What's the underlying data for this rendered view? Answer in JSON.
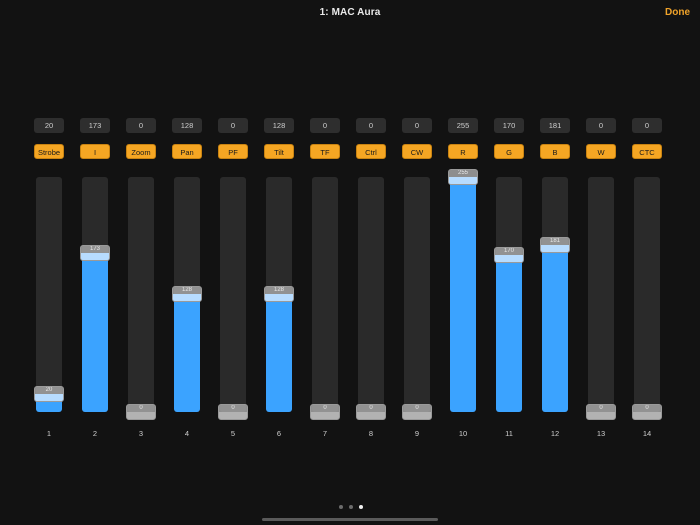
{
  "header": {
    "title": "1: MAC Aura",
    "done_label": "Done"
  },
  "colors": {
    "accent": "#f5a623",
    "fill": "#3ba3ff",
    "background": "#121212",
    "track": "#2a2a2a"
  },
  "channels": [
    {
      "number": "1",
      "label": "Strobe",
      "value": "20"
    },
    {
      "number": "2",
      "label": "I",
      "value": "173"
    },
    {
      "number": "3",
      "label": "Zoom",
      "value": "0"
    },
    {
      "number": "4",
      "label": "Pan",
      "value": "128"
    },
    {
      "number": "5",
      "label": "PF",
      "value": "0"
    },
    {
      "number": "6",
      "label": "Tilt",
      "value": "128"
    },
    {
      "number": "7",
      "label": "TF",
      "value": "0"
    },
    {
      "number": "8",
      "label": "Ctrl",
      "value": "0"
    },
    {
      "number": "9",
      "label": "CW",
      "value": "0"
    },
    {
      "number": "10",
      "label": "R",
      "value": "255"
    },
    {
      "number": "11",
      "label": "G",
      "value": "170"
    },
    {
      "number": "12",
      "label": "B",
      "value": "181"
    },
    {
      "number": "13",
      "label": "W",
      "value": "0"
    },
    {
      "number": "14",
      "label": "CTC",
      "value": "0"
    }
  ],
  "pager": {
    "count": 3,
    "active": 3
  }
}
